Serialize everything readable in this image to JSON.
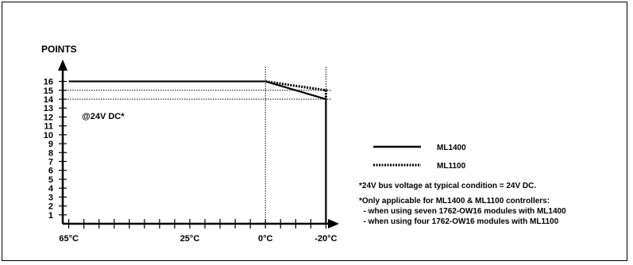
{
  "chart_data": {
    "type": "line",
    "ylabel": "POINTS",
    "y_ticks": [
      1,
      2,
      3,
      4,
      5,
      6,
      7,
      8,
      9,
      10,
      11,
      12,
      13,
      14,
      15,
      16
    ],
    "ylim": [
      0,
      17.3
    ],
    "x_tick_labels": [
      "65°C",
      "25°C",
      "0°C",
      "-20°C"
    ],
    "x_reversed": true,
    "xlim": [
      67,
      -22
    ],
    "annotation": "@24V DC*",
    "reference_lines": {
      "vertical_at": [
        0,
        -20
      ],
      "horizontal_at": [
        15,
        14
      ]
    },
    "series": [
      {
        "name": "ML1400",
        "style": "solid",
        "x": [
          65,
          0,
          -20,
          -20
        ],
        "y": [
          16,
          16,
          14,
          0
        ]
      },
      {
        "name": "ML1100",
        "style": "dotted",
        "x": [
          0,
          -20,
          -20
        ],
        "y": [
          16,
          15,
          14
        ]
      }
    ],
    "legend": {
      "placement": "right"
    }
  },
  "notes": {
    "line1": "*24V bus voltage at typical condition = 24V DC.",
    "line2": "*Only applicable for ML1400 & ML1100 controllers:",
    "line3": "  - when using seven 1762-OW16 modules with ML1400",
    "line4": "  - when using four 1762-OW16 modules with ML1100"
  }
}
